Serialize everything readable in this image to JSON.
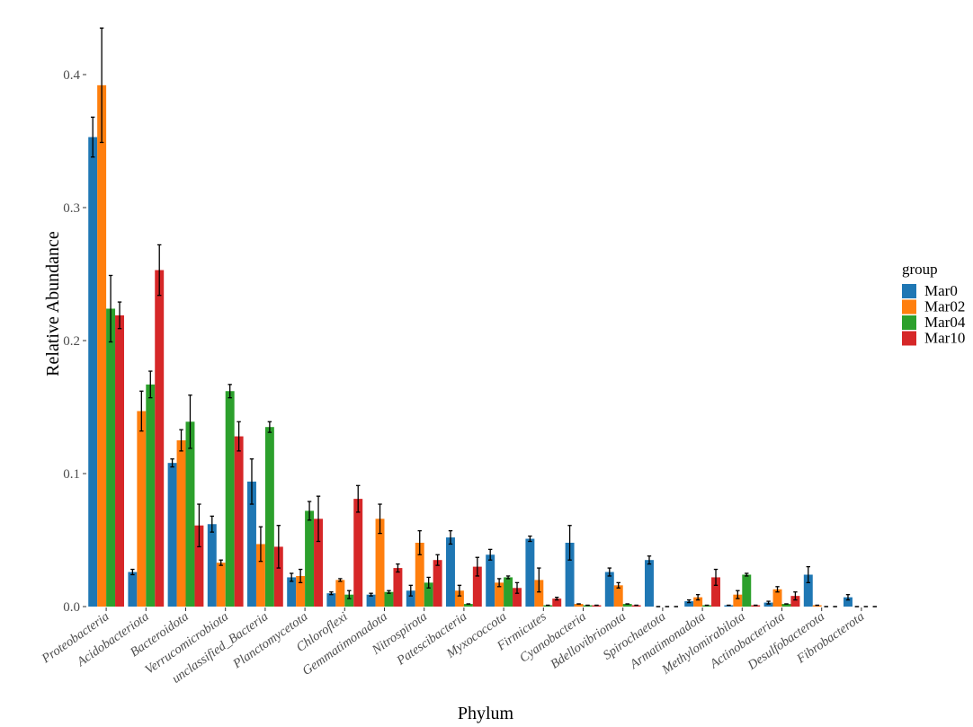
{
  "chart_data": {
    "type": "bar",
    "xlabel": "Phylum",
    "ylabel": "Relative Abundance",
    "ylim": [
      0,
      0.44
    ],
    "y_ticks": [
      "0.0",
      "0.1",
      "0.2",
      "0.3",
      "0.4"
    ],
    "grid": false,
    "legend_title": "group",
    "legend_position": "right",
    "categories": [
      "Proteobacteria",
      "Acidobacteriota",
      "Bacteroidota",
      "Verrucomicrobiota",
      "unclassified_Bacteria",
      "Planctomycetota",
      "Chloroflexi",
      "Gemmatimonadota",
      "Nitrospirota",
      "Patescibacteria",
      "Myxococcota",
      "Firmicutes",
      "Cyanobacteria",
      "Bdellovibrionota",
      "Spirochaetota",
      "Armatimonadota",
      "Methylomirabilota",
      "Actinobacteriota",
      "Desulfobacterota",
      "Fibrobacterota"
    ],
    "series": [
      {
        "name": "Mar0",
        "color": "#1f77b4",
        "values": [
          0.353,
          0.026,
          0.108,
          0.062,
          0.094,
          0.022,
          0.01,
          0.009,
          0.012,
          0.052,
          0.039,
          0.051,
          0.048,
          0.026,
          0.035,
          0.004,
          0.001,
          0.003,
          0.024,
          0.007
        ],
        "errors": [
          0.015,
          0.002,
          0.003,
          0.006,
          0.017,
          0.003,
          0.001,
          0.001,
          0.004,
          0.005,
          0.004,
          0.002,
          0.013,
          0.003,
          0.003,
          0.001,
          0.0,
          0.001,
          0.006,
          0.002
        ]
      },
      {
        "name": "Mar02",
        "color": "#ff7f0e",
        "values": [
          0.392,
          0.147,
          0.125,
          0.033,
          0.047,
          0.023,
          0.02,
          0.066,
          0.048,
          0.012,
          0.018,
          0.02,
          0.002,
          0.016,
          0.0,
          0.007,
          0.009,
          0.013,
          0.001,
          0.0
        ],
        "errors": [
          0.043,
          0.015,
          0.008,
          0.002,
          0.013,
          0.005,
          0.001,
          0.011,
          0.009,
          0.004,
          0.003,
          0.009,
          0.0,
          0.002,
          0.0,
          0.002,
          0.003,
          0.002,
          0.0,
          0.0
        ]
      },
      {
        "name": "Mar04",
        "color": "#2ca02c",
        "values": [
          0.224,
          0.167,
          0.139,
          0.162,
          0.135,
          0.072,
          0.009,
          0.011,
          0.018,
          0.002,
          0.022,
          0.001,
          0.001,
          0.002,
          0.0,
          0.001,
          0.024,
          0.002,
          0.0,
          0.0
        ],
        "errors": [
          0.025,
          0.01,
          0.02,
          0.005,
          0.004,
          0.007,
          0.003,
          0.001,
          0.004,
          0.0,
          0.001,
          0.0,
          0.0,
          0.0,
          0.0,
          0.0,
          0.001,
          0.0,
          0.0,
          0.0
        ]
      },
      {
        "name": "Mar10",
        "color": "#d62728",
        "values": [
          0.219,
          0.253,
          0.061,
          0.128,
          0.045,
          0.066,
          0.081,
          0.029,
          0.035,
          0.03,
          0.014,
          0.006,
          0.001,
          0.001,
          0.0,
          0.022,
          0.001,
          0.008,
          0.0,
          0.0
        ],
        "errors": [
          0.01,
          0.019,
          0.016,
          0.011,
          0.016,
          0.017,
          0.01,
          0.003,
          0.004,
          0.007,
          0.004,
          0.001,
          0.0,
          0.0,
          0.0,
          0.006,
          0.0,
          0.003,
          0.0,
          0.0
        ]
      }
    ]
  }
}
